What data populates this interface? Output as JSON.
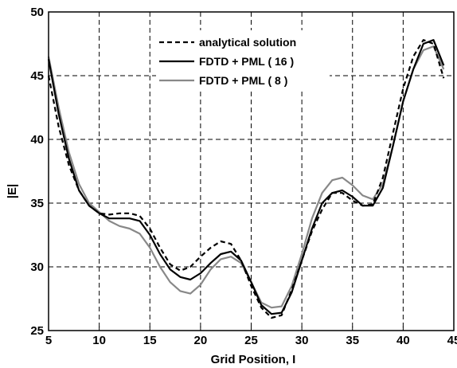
{
  "chart_data": {
    "type": "line",
    "title": "",
    "xlabel": "Grid Position, I",
    "ylabel": "|E|",
    "xlim": [
      5,
      45
    ],
    "ylim": [
      25,
      50
    ],
    "xticks": [
      "5",
      "10",
      "15",
      "20",
      "25",
      "30",
      "35",
      "40",
      "45"
    ],
    "yticks": [
      "25",
      "30",
      "35",
      "40",
      "45",
      "50"
    ],
    "grid": true,
    "legend_position": "top-center",
    "series": [
      {
        "name": "analytical solution",
        "color": "#000000",
        "style": "dashed",
        "x": [
          5,
          6,
          7,
          8,
          9,
          10,
          11,
          12,
          13,
          14,
          15,
          16,
          17,
          18,
          19,
          20,
          21,
          22,
          23,
          24,
          25,
          26,
          27,
          28,
          29,
          30,
          31,
          32,
          33,
          34,
          35,
          36,
          37,
          38,
          39,
          40,
          41,
          42,
          43,
          44
        ],
        "y": [
          45.0,
          41.0,
          38.0,
          36.0,
          34.8,
          34.2,
          34.1,
          34.2,
          34.2,
          34.0,
          33.0,
          31.5,
          30.2,
          29.7,
          30.0,
          30.8,
          31.5,
          32.0,
          31.8,
          30.5,
          28.5,
          26.8,
          26.0,
          26.2,
          28.2,
          30.5,
          32.8,
          34.5,
          35.8,
          35.8,
          35.2,
          34.8,
          34.9,
          37.0,
          40.5,
          44.0,
          46.5,
          47.8,
          47.5,
          44.8
        ]
      },
      {
        "name": "FDTD + PML ( 16 )",
        "color": "#000000",
        "style": "solid",
        "x": [
          5,
          6,
          7,
          8,
          9,
          10,
          11,
          12,
          13,
          14,
          15,
          16,
          17,
          18,
          19,
          20,
          21,
          22,
          23,
          24,
          25,
          26,
          27,
          28,
          29,
          30,
          31,
          32,
          33,
          34,
          35,
          36,
          37,
          38,
          39,
          40,
          41,
          42,
          43,
          44
        ],
        "y": [
          46.3,
          42.0,
          38.5,
          36.0,
          34.8,
          34.2,
          33.8,
          33.8,
          33.8,
          33.6,
          32.5,
          31.0,
          29.8,
          29.2,
          29.0,
          29.5,
          30.3,
          31.0,
          31.2,
          30.5,
          28.8,
          27.0,
          26.3,
          26.4,
          28.0,
          30.5,
          33.0,
          35.0,
          35.8,
          36.0,
          35.5,
          34.8,
          34.8,
          36.2,
          39.5,
          43.0,
          45.5,
          47.5,
          47.8,
          45.8
        ]
      },
      {
        "name": "FDTD + PML ( 8 )",
        "color": "#888888",
        "style": "solid",
        "x": [
          5,
          6,
          7,
          8,
          9,
          10,
          11,
          12,
          13,
          14,
          15,
          16,
          17,
          18,
          19,
          20,
          21,
          22,
          23,
          24,
          25,
          26,
          27,
          28,
          29,
          30,
          31,
          32,
          33,
          34,
          35,
          36,
          37,
          38,
          39,
          40,
          41,
          42,
          43,
          44
        ],
        "y": [
          46.5,
          42.5,
          39.0,
          36.5,
          35.0,
          34.3,
          33.6,
          33.2,
          33.0,
          32.6,
          31.5,
          30.0,
          28.8,
          28.1,
          27.9,
          28.6,
          29.8,
          30.6,
          30.8,
          30.3,
          28.8,
          27.2,
          26.8,
          26.9,
          28.5,
          31.0,
          33.8,
          35.8,
          36.8,
          37.0,
          36.4,
          35.6,
          35.3,
          36.5,
          39.5,
          43.0,
          45.5,
          47.0,
          47.3,
          45.5
        ]
      }
    ]
  }
}
